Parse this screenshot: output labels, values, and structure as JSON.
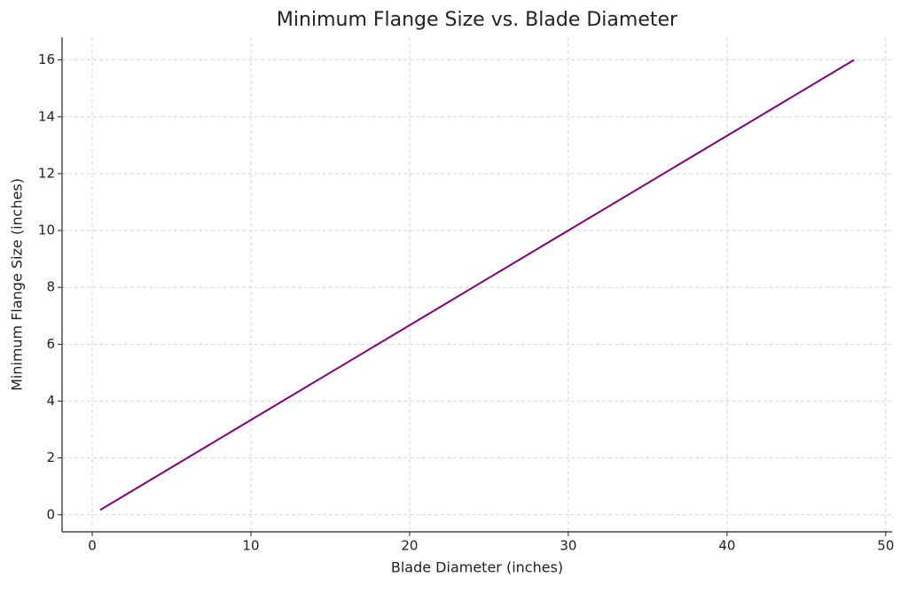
{
  "chart_data": {
    "type": "line",
    "title": "Minimum Flange Size vs. Blade Diameter",
    "xlabel": "Blade Diameter (inches)",
    "ylabel": "Minimum Flange Size (inches)",
    "x": [
      0.5,
      48
    ],
    "series": [
      {
        "name": "Minimum Flange Size",
        "color": "#800080",
        "values": [
          0.17,
          16
        ]
      }
    ],
    "xlim": [
      -1.9,
      50.4
    ],
    "xticks": [
      0,
      10,
      20,
      30,
      40,
      50
    ],
    "ylim": [
      -0.6,
      16.8
    ],
    "yticks": [
      0,
      2,
      4,
      6,
      8,
      10,
      12,
      14,
      16
    ],
    "grid": true
  }
}
